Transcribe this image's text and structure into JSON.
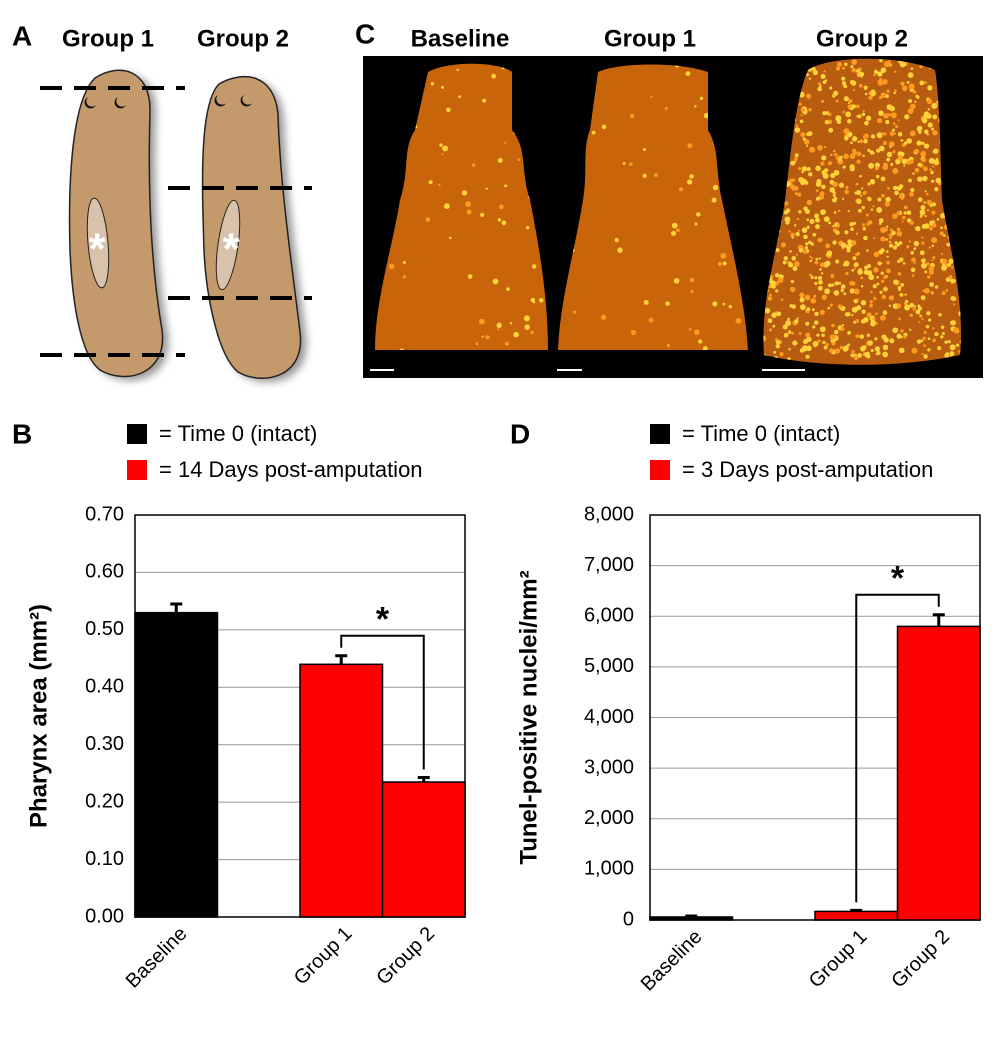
{
  "panel_a": {
    "label": "A",
    "titles": [
      "Group 1",
      "Group 2"
    ],
    "marker": "*"
  },
  "panel_c": {
    "label": "C",
    "titles": [
      "Baseline",
      "Group 1",
      "Group 2"
    ]
  },
  "chart_data": [
    {
      "type": "bar",
      "label": "B",
      "ylabel": "Pharynx area (mm²)",
      "categories": [
        "Baseline",
        null,
        "Group 1",
        "Group 2"
      ],
      "series": [
        {
          "name": "= Time 0 (intact)",
          "color": "#000000",
          "values": [
            0.53,
            null,
            null,
            null
          ],
          "errors": [
            0.015,
            null,
            null,
            null
          ]
        },
        {
          "name": "= 14 Days post-amputation",
          "color": "#ff0000",
          "values": [
            null,
            null,
            0.44,
            0.235
          ],
          "errors": [
            null,
            null,
            0.015,
            0.008
          ]
        }
      ],
      "ylim": [
        0,
        0.7
      ],
      "yticks": [
        {
          "value": 0,
          "label": "0.00"
        },
        {
          "value": 0.1,
          "label": "0.10"
        },
        {
          "value": 0.2,
          "label": "0.20"
        },
        {
          "value": 0.3,
          "label": "0.30"
        },
        {
          "value": 0.4,
          "label": "0.40"
        },
        {
          "value": 0.5,
          "label": "0.50"
        },
        {
          "value": 0.6,
          "label": "0.60"
        },
        {
          "value": 0.7,
          "label": "0.70"
        }
      ],
      "grid": true,
      "annotation": "*"
    },
    {
      "type": "bar",
      "label": "D",
      "ylabel": "Tunel-positive nuclei/mm²",
      "categories": [
        "Baseline",
        null,
        "Group 1",
        "Group 2"
      ],
      "series": [
        {
          "name": "= Time 0 (intact)",
          "color": "#000000",
          "values": [
            60,
            null,
            null,
            null
          ],
          "errors": [
            20,
            null,
            null,
            null
          ]
        },
        {
          "name": "= 3 Days post-amputation",
          "color": "#ff0000",
          "values": [
            null,
            null,
            170,
            5800
          ],
          "errors": [
            null,
            null,
            20,
            230
          ]
        }
      ],
      "ylim": [
        0,
        8000
      ],
      "yticks": [
        0,
        {
          "value": 1000,
          "label": "1,000"
        },
        {
          "value": 2000,
          "label": "2,000"
        },
        {
          "value": 3000,
          "label": "3,000"
        },
        {
          "value": 4000,
          "label": "4,000"
        },
        {
          "value": 5000,
          "label": "5,000"
        },
        {
          "value": 6000,
          "label": "6,000"
        },
        {
          "value": 7000,
          "label": "7,000"
        },
        {
          "value": 8000,
          "label": "8,000"
        }
      ],
      "grid": true,
      "annotation": "*"
    }
  ]
}
